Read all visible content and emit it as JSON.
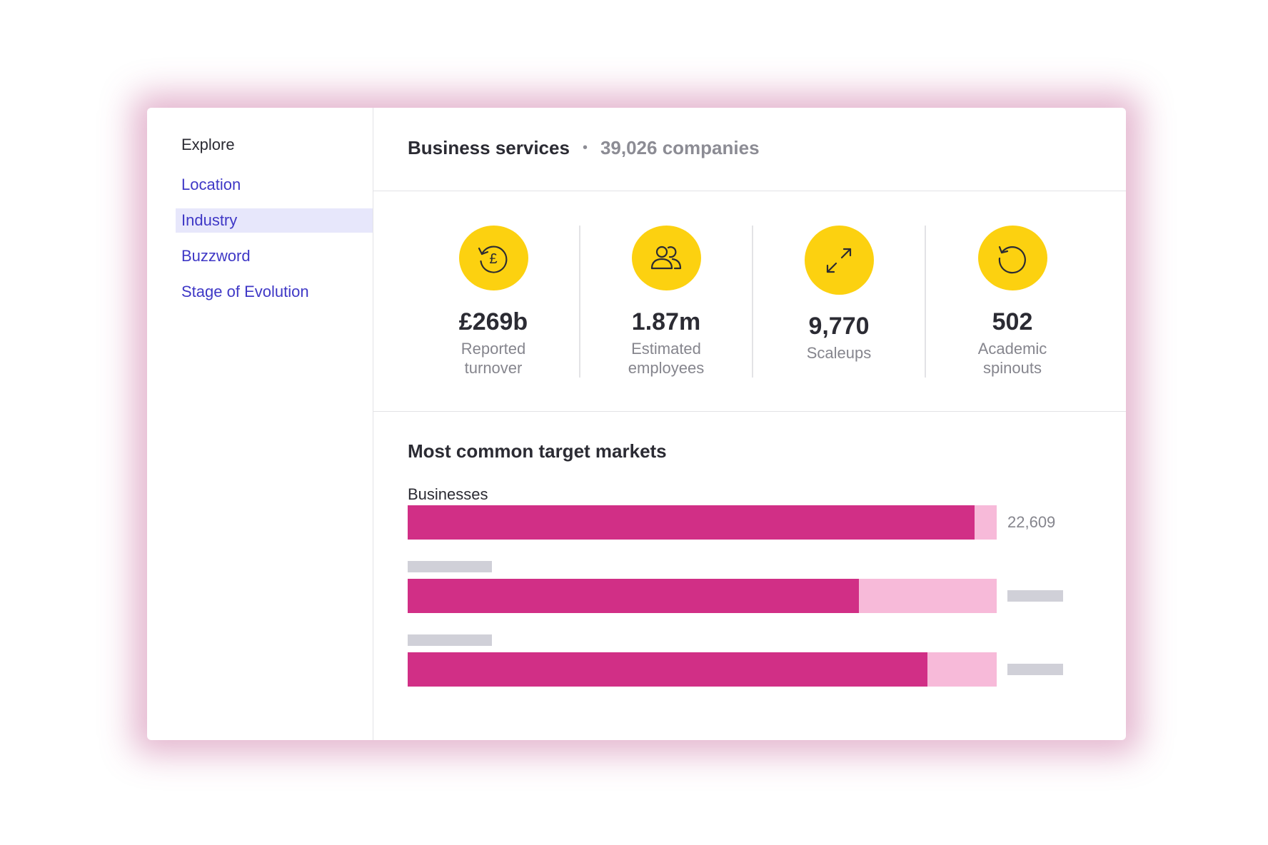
{
  "sidebar": {
    "heading": "Explore",
    "items": [
      {
        "label": "Location",
        "active": false
      },
      {
        "label": "Industry",
        "active": true
      },
      {
        "label": "Buzzword",
        "active": false
      },
      {
        "label": "Stage of Evolution",
        "active": false
      }
    ]
  },
  "header": {
    "title": "Business services",
    "separator": "•",
    "count": "39,026 companies"
  },
  "stats": [
    {
      "icon": "pound-cycle-icon",
      "value": "£269b",
      "label": "Reported turnover"
    },
    {
      "icon": "people-icon",
      "value": "1.87m",
      "label": "Estimated employees"
    },
    {
      "icon": "expand-arrows-icon",
      "value": "9,770",
      "label": "Scaleups"
    },
    {
      "icon": "refresh-icon",
      "value": "502",
      "label": "Academic spinouts"
    }
  ],
  "markets": {
    "title": "Most common target markets",
    "chart_data": {
      "type": "bar",
      "orientation": "horizontal",
      "categories": [
        "Businesses",
        "",
        ""
      ],
      "values": [
        "22,609",
        "",
        ""
      ],
      "fill_fraction": [
        0.962,
        0.766,
        0.883
      ]
    }
  },
  "colors": {
    "accent_yellow": "#fcd110",
    "bar_fill": "#d12f86",
    "bar_track": "#f7bad9",
    "link": "#3f38c6",
    "active_bg": "#e7e7fb",
    "placeholder": "#d0d0d8"
  }
}
